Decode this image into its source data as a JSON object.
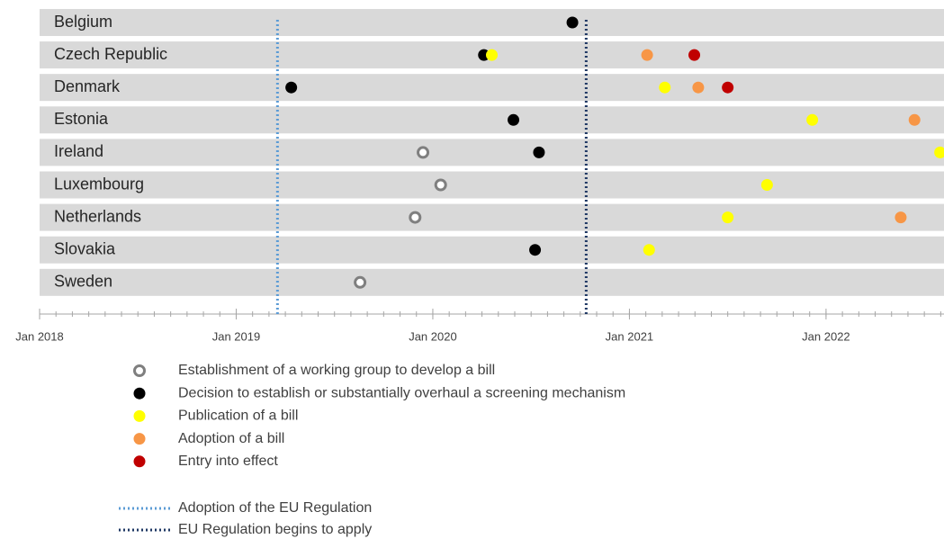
{
  "chart_data": {
    "type": "timeline",
    "categories": [
      "Belgium",
      "Czech Republic",
      "Denmark",
      "Estonia",
      "Ireland",
      "Luxembourg",
      "Netherlands",
      "Slovakia",
      "Sweden"
    ],
    "xlim": [
      2018,
      2022.6
    ],
    "xticks": [
      {
        "value": 2018,
        "label": "Jan 2018"
      },
      {
        "value": 2019,
        "label": "Jan 2019"
      },
      {
        "value": 2020,
        "label": "Jan 2020"
      },
      {
        "value": 2021,
        "label": "Jan 2021"
      },
      {
        "value": 2022,
        "label": "Jan 2022"
      }
    ],
    "series": [
      {
        "name": "Establishment of a working group to develop a bill",
        "color": "#7f7f7f",
        "marker": "hollow",
        "x": [
          2019.95,
          2020.04,
          2019.91,
          2019.63
        ],
        "y": [
          "Ireland",
          "Luxembourg",
          "Netherlands",
          "Sweden"
        ]
      },
      {
        "name": "Decision to establish or substantially overhaul a screening mechanism",
        "color": "#000000",
        "marker": "filled",
        "x": [
          2020.71,
          2020.26,
          2019.28,
          2020.41,
          2020.54,
          2020.52
        ],
        "y": [
          "Belgium",
          "Czech Republic",
          "Denmark",
          "Estonia",
          "Ireland",
          "Slovakia"
        ]
      },
      {
        "name": "Publication of a bill",
        "color": "#ffff00",
        "marker": "filled",
        "x": [
          2020.3,
          2021.18,
          2021.93,
          2022.58,
          2021.7,
          2021.5,
          2021.1
        ],
        "y": [
          "Czech Republic",
          "Denmark",
          "Estonia",
          "Ireland",
          "Luxembourg",
          "Netherlands",
          "Slovakia"
        ]
      },
      {
        "name": "Adoption of a bill",
        "color": "#f79646",
        "marker": "filled",
        "x": [
          2021.09,
          2021.35,
          2022.45,
          2022.38
        ],
        "y": [
          "Czech Republic",
          "Denmark",
          "Estonia",
          "Netherlands"
        ]
      },
      {
        "name": "Entry into effect",
        "color": "#c00000",
        "marker": "filled",
        "x": [
          2021.33,
          2021.5
        ],
        "y": [
          "Czech Republic",
          "Denmark"
        ]
      }
    ],
    "reference_lines": [
      {
        "name": "Adoption of the EU Regulation",
        "x": 2019.21,
        "color": "#5b9bd5"
      },
      {
        "name": "EU Regulation begins to apply",
        "x": 2020.78,
        "color": "#1f3864"
      }
    ]
  }
}
